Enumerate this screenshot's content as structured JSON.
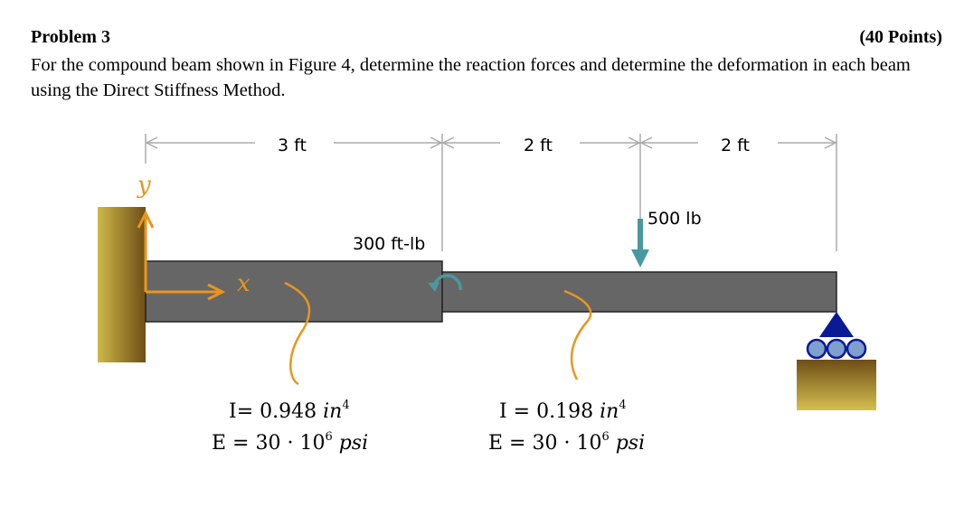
{
  "problem": {
    "title": "Problem 3",
    "points": "(40 Points)",
    "statement": "For the compound beam shown in Figure 4, determine the reaction forces and determine the deformation in each beam using the Direct Stiffness Method."
  },
  "figure": {
    "dimensions": [
      "3 ft",
      "2 ft",
      "2 ft"
    ],
    "axis_y": "y",
    "axis_x": "x",
    "moment_label": "300 ft-lb",
    "force_label": "500 lb",
    "beam1": {
      "I_label": "I= 0.948 ",
      "I_unit": "in",
      "I_exp": "4",
      "E_label": "E = 30 · 10",
      "E_exp": "6",
      "E_unit": " psi"
    },
    "beam2": {
      "I_label": "I = 0.198 ",
      "I_unit": "in",
      "I_exp": "4",
      "E_label": "E = 30 · 10",
      "E_exp": "6",
      "E_unit": " psi"
    },
    "colors": {
      "beam": "#666666",
      "axis": "#e8961e",
      "load": "#4a98a0",
      "support": "#0a1a96",
      "roller": "#7f9fcc",
      "ground_dark": "#7a5a1a",
      "ground_light": "#cfb848"
    }
  }
}
